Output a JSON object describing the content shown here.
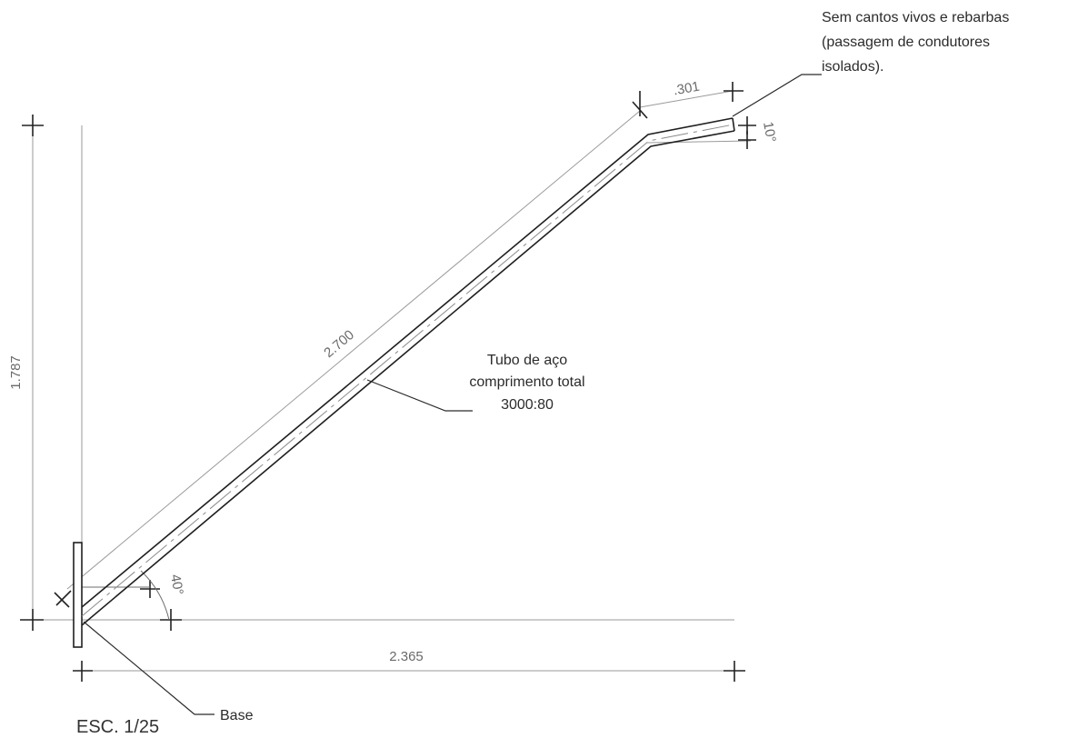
{
  "dimensions": {
    "height": "1.787",
    "horizontal": "2.365",
    "tube_length": "2.700",
    "tip_length": ".301",
    "tip_angle": "10°",
    "base_angle": "40°"
  },
  "notes": {
    "tube_line1": "Tubo de aço",
    "tube_line2": "comprimento total",
    "tube_line3": "3000:80",
    "edge_line1": "Sem cantos vivos e rebarbas",
    "edge_line2": "(passagem de condutores",
    "edge_line3": "isolados).",
    "base_label": "Base"
  },
  "scale": "ESC. 1/25"
}
